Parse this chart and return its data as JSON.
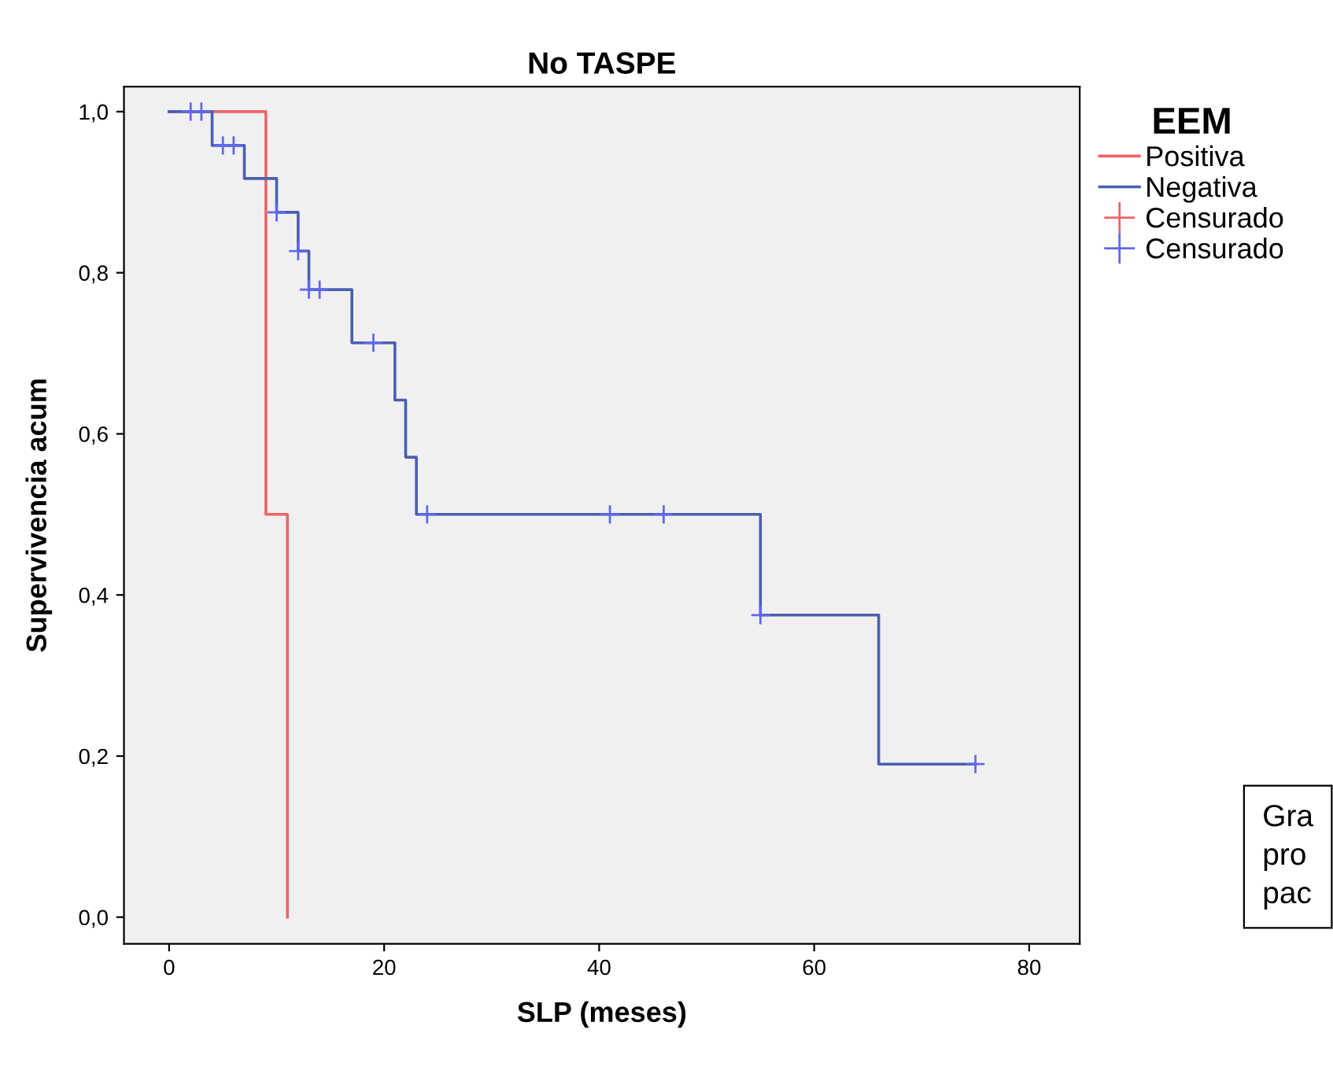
{
  "chart_data": {
    "type": "step",
    "title": "No TASPE",
    "xlabel": "SLP (meses)",
    "ylabel": "Supervivencia acum",
    "legend_title": "EEM",
    "legend": "right",
    "grid": false,
    "xlim": [
      -4.2,
      84.7
    ],
    "xticks": [
      0,
      20,
      40,
      60,
      80
    ],
    "ylim": [
      -0.033,
      1.031
    ],
    "yticks": [
      {
        "value": 0,
        "label": "0,0"
      },
      {
        "value": 0.2,
        "label": "0,2"
      },
      {
        "value": 0.4,
        "label": "0,4"
      },
      {
        "value": 0.6,
        "label": "0,6"
      },
      {
        "value": 0.8,
        "label": "0,8"
      },
      {
        "value": 1,
        "label": "1,0"
      }
    ],
    "series": [
      {
        "name": "Positiva",
        "color": "#f06468",
        "x": [
          0,
          9,
          11
        ],
        "values": [
          1,
          0.5,
          0
        ]
      },
      {
        "name": "Negativa",
        "color": "#4a5fb0",
        "x": [
          0,
          4,
          7,
          10,
          12,
          13,
          17,
          21,
          22,
          23,
          55,
          66,
          75
        ],
        "values": [
          1,
          0.958,
          0.917,
          0.875,
          0.827,
          0.779,
          0.713,
          0.642,
          0.571,
          0.5,
          0.375,
          0.19,
          0.19
        ]
      },
      {
        "name": "Censurado",
        "type": "scatter",
        "marker": "cross",
        "color": "#f06468"
      },
      {
        "name": "Censurado",
        "type": "scatter",
        "marker": "cross",
        "color": "#6068f0",
        "x": [
          2,
          3,
          5,
          6,
          10,
          12,
          13,
          14,
          19,
          24,
          41,
          46,
          55,
          75
        ],
        "values": [
          1,
          1,
          0.958,
          0.958,
          0.875,
          0.827,
          0.779,
          0.779,
          0.713,
          0.5,
          0.5,
          0.5,
          0.375,
          0.19
        ]
      }
    ],
    "annotations": [
      "Gra\npro\npac"
    ]
  }
}
